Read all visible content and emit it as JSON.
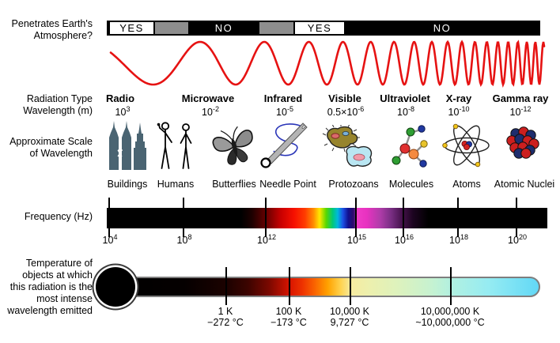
{
  "row_labels": {
    "atmosphere_1": "Penetrates Earth's",
    "atmosphere_2": "Atmosphere?",
    "radiation_1": "Radiation Type",
    "radiation_2": "Wavelength (m)",
    "scale_1": "Approximate Scale",
    "scale_2": "of Wavelength",
    "frequency": "Frequency (Hz)",
    "temperature_1": "Temperature of",
    "temperature_2": "objects at which",
    "temperature_3": "this radiation is the",
    "temperature_4": "most intense",
    "temperature_5": "wavelength emitted"
  },
  "atmosphere": {
    "segments": [
      {
        "label": "YES",
        "penetrates": "yes"
      },
      {
        "label": "",
        "penetrates": "partial"
      },
      {
        "label": "NO",
        "penetrates": "no"
      },
      {
        "label": "",
        "penetrates": "partial"
      },
      {
        "label": "YES",
        "penetrates": "yes"
      },
      {
        "label": "NO",
        "penetrates": "no"
      }
    ]
  },
  "bands": [
    {
      "name": "Radio",
      "wl_base": "10",
      "wl_exp": "3"
    },
    {
      "name": "Microwave",
      "wl_base": "10",
      "wl_exp": "-2"
    },
    {
      "name": "Infrared",
      "wl_base": "10",
      "wl_exp": "-5"
    },
    {
      "name": "Visible",
      "wl_base": "0.5×10",
      "wl_exp": "-6"
    },
    {
      "name": "Ultraviolet",
      "wl_base": "10",
      "wl_exp": "-8"
    },
    {
      "name": "X-ray",
      "wl_base": "10",
      "wl_exp": "-10"
    },
    {
      "name": "Gamma ray",
      "wl_base": "10",
      "wl_exp": "-12"
    }
  ],
  "scale_items": [
    {
      "label": "Buildings",
      "icon": "buildings-icon"
    },
    {
      "label": "Humans",
      "icon": "humans-icon"
    },
    {
      "label": "Butterflies",
      "icon": "butterfly-icon"
    },
    {
      "label": "Needle Point",
      "icon": "needle-icon"
    },
    {
      "label": "Protozoans",
      "icon": "protozoans-icon"
    },
    {
      "label": "Molecules",
      "icon": "molecule-icon"
    },
    {
      "label": "Atoms",
      "icon": "atom-icon"
    },
    {
      "label": "Atomic Nuclei",
      "icon": "atomic-nucleus-icon"
    }
  ],
  "frequency": {
    "ticks": [
      {
        "base": "10",
        "exp": "4"
      },
      {
        "base": "10",
        "exp": "8"
      },
      {
        "base": "10",
        "exp": "12"
      },
      {
        "base": "10",
        "exp": "15"
      },
      {
        "base": "10",
        "exp": "16"
      },
      {
        "base": "10",
        "exp": "18"
      },
      {
        "base": "10",
        "exp": "20"
      }
    ]
  },
  "temperature": {
    "ticks": [
      {
        "kelvin": "1 K",
        "celsius": "−272 °C"
      },
      {
        "kelvin": "100 K",
        "celsius": "−173 °C"
      },
      {
        "kelvin": "10,000 K",
        "celsius": "9,727 °C"
      },
      {
        "kelvin": "10,000,000 K",
        "celsius": "~10,000,000 °C"
      }
    ]
  },
  "colors": {
    "wave": "#e61212",
    "building": "#4a6472",
    "bar_gray": "#8e8e8e"
  }
}
